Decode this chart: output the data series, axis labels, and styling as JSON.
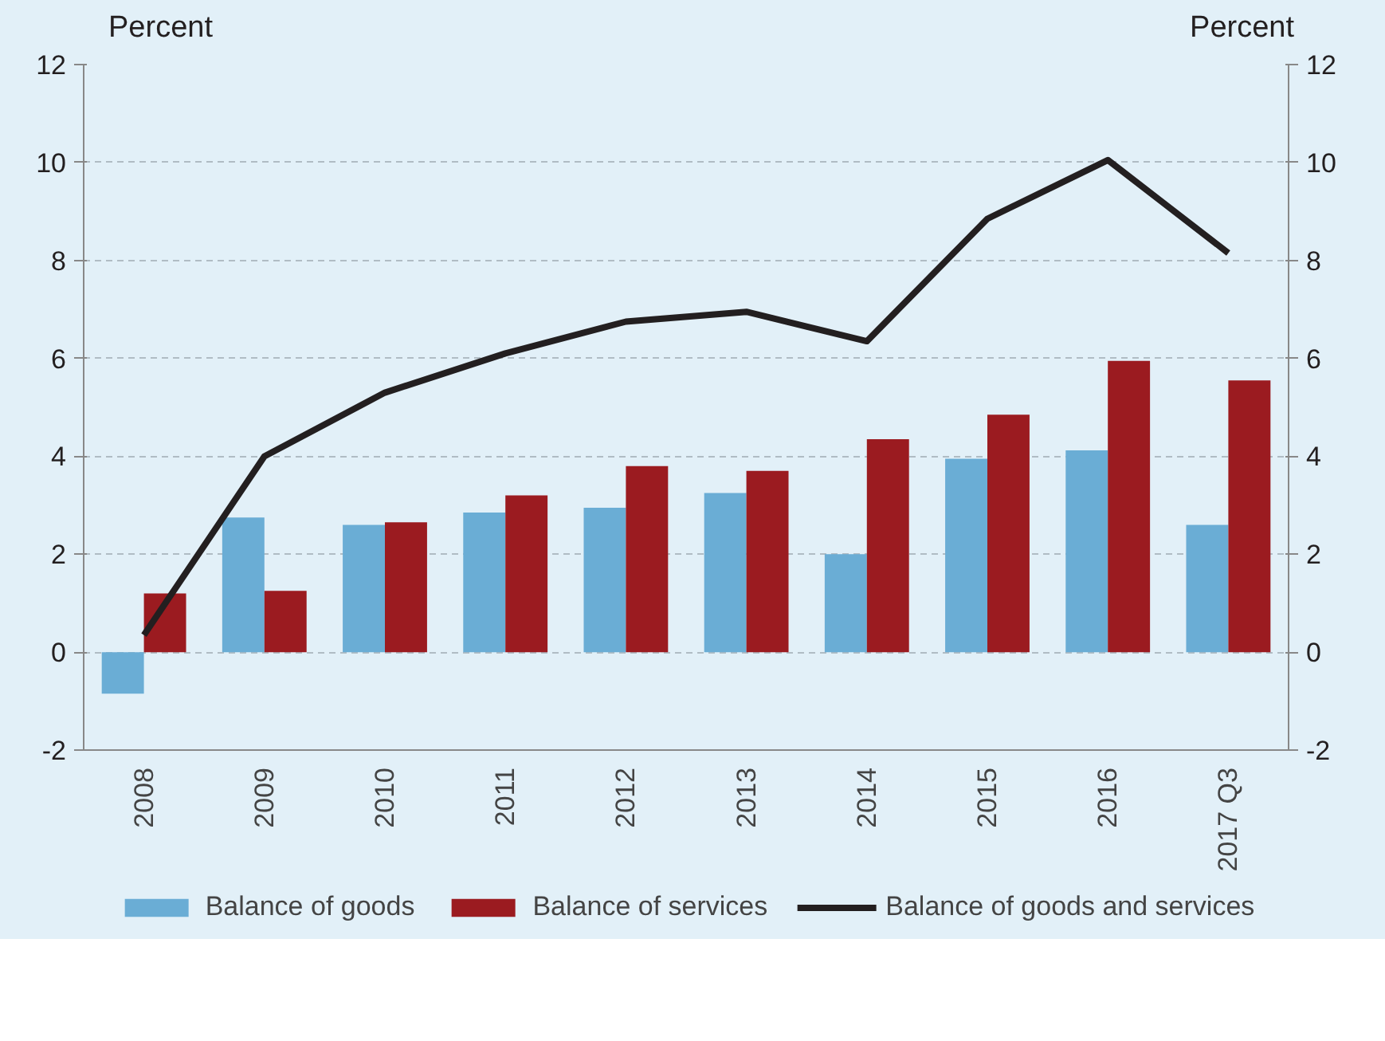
{
  "chart_data": {
    "type": "bar",
    "categories": [
      "2008",
      "2009",
      "2010",
      "2011",
      "2012",
      "2013",
      "2014",
      "2015",
      "2016",
      "2017 Q3"
    ],
    "ylabel": "Percent",
    "y2label": "Percent",
    "series": [
      {
        "name": "Balance of goods",
        "color": "#6aadd5",
        "values": [
          -0.85,
          2.75,
          2.6,
          2.85,
          2.95,
          3.25,
          2.0,
          3.95,
          4.12,
          2.6
        ]
      },
      {
        "name": "Balance of services",
        "color": "#9b1b20",
        "values": [
          1.2,
          1.25,
          2.65,
          3.2,
          3.8,
          3.7,
          4.35,
          4.85,
          5.95,
          5.55
        ]
      },
      {
        "name": "Balance of goods and services",
        "color": "#231f20",
        "type": "line",
        "values": [
          0.35,
          4.0,
          5.3,
          6.1,
          6.75,
          6.95,
          6.35,
          8.85,
          10.05,
          8.15
        ]
      }
    ],
    "ylim": [
      -2,
      12
    ],
    "yticks": [
      -2,
      0,
      2,
      4,
      6,
      8,
      10,
      12
    ],
    "y2lim": [
      -2,
      12
    ],
    "y2ticks": [
      -2,
      0,
      2,
      4,
      6,
      8,
      10,
      12
    ],
    "grid": "y",
    "legend": "bottom",
    "marker": "none",
    "line_style": "solid"
  }
}
